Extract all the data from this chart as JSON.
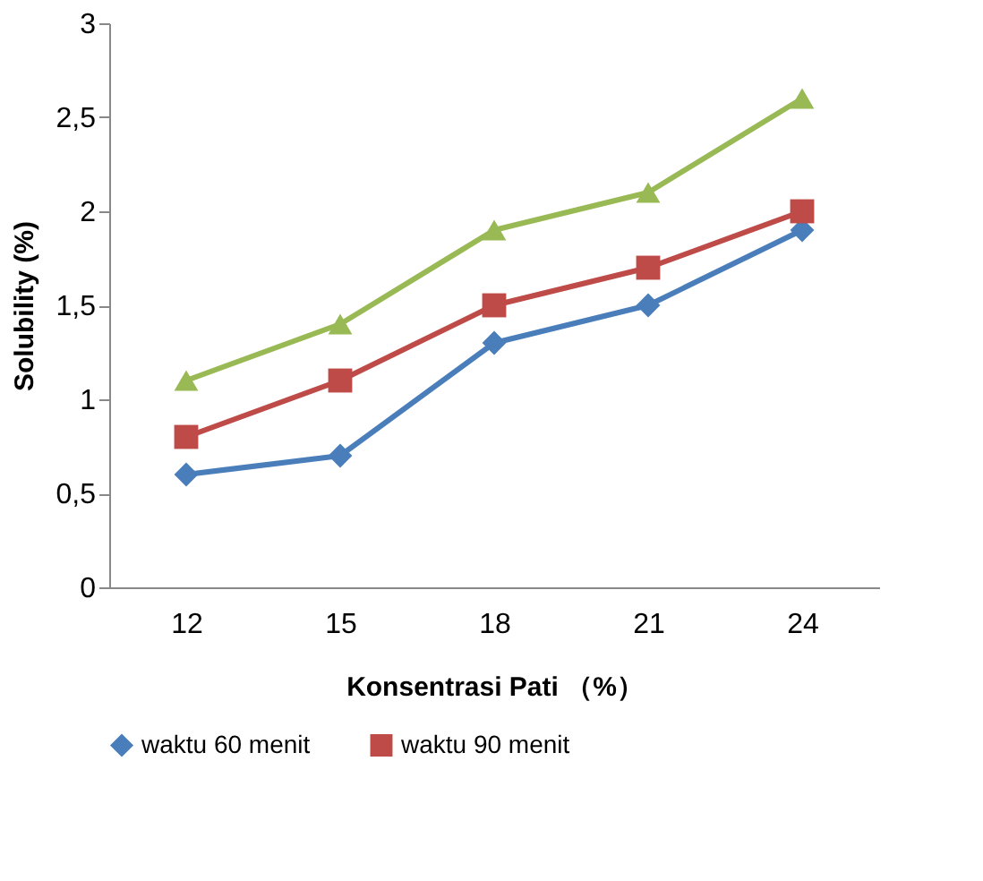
{
  "chart_data": {
    "type": "line",
    "xlabel": "Konsentrasi Pati （%）",
    "ylabel": "Solubility (%)",
    "categories": [
      "12",
      "15",
      "18",
      "21",
      "24"
    ],
    "series": [
      {
        "name": "waktu 60 menit",
        "color": "#4a7ebb",
        "marker": "diamond",
        "values": [
          0.6,
          0.7,
          1.3,
          1.5,
          1.9
        ]
      },
      {
        "name": "waktu 90 menit",
        "color": "#be4b48",
        "marker": "square",
        "values": [
          0.8,
          1.1,
          1.5,
          1.7,
          2.0
        ]
      },
      {
        "color": "#98b954",
        "marker": "triangle",
        "values": [
          1.1,
          1.4,
          1.9,
          2.1,
          2.6
        ]
      }
    ],
    "ylim": [
      0,
      3
    ],
    "yticks": [
      0,
      {
        "value": 0.5,
        "label": "0,5"
      },
      1,
      {
        "value": 1.5,
        "label": "1,5"
      },
      2,
      {
        "value": 2.5,
        "label": "2,5"
      },
      3
    ],
    "grid": false,
    "legend": "bottom",
    "line_style": "solid"
  }
}
